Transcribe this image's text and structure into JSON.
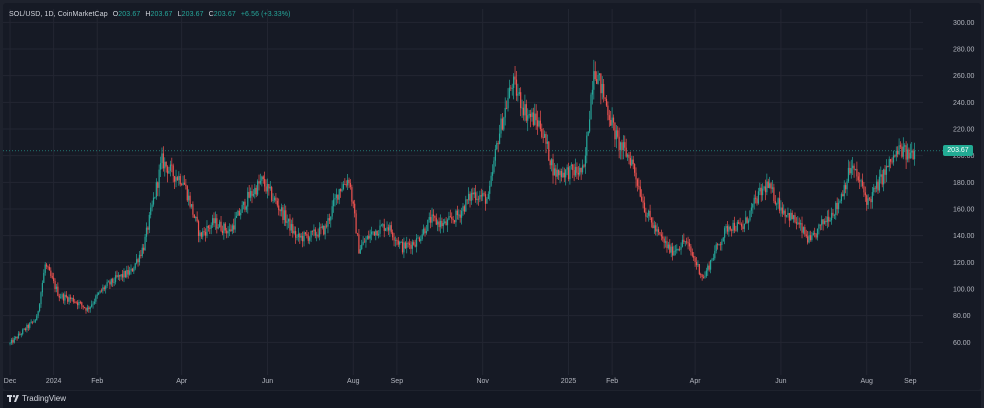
{
  "legend": {
    "symbol": "SOL/USD, 1D, CoinMarketCap",
    "open_label": "O",
    "open": "203.67",
    "high_label": "H",
    "high": "203.67",
    "low_label": "L",
    "low": "203.67",
    "close_label": "C",
    "close": "203.67",
    "change": "+6.56 (+3.33%)"
  },
  "last_price": "203.67",
  "brand": {
    "name": "TradingView"
  },
  "colors": {
    "up": "#26a69a",
    "down": "#ef5350",
    "grid": "#232632",
    "background": "#161a25"
  },
  "chart_data": {
    "type": "candlestick",
    "y_axis_side": "right",
    "ylim": [
      40,
      310
    ],
    "yticks": [
      60,
      80,
      100,
      120,
      140,
      160,
      180,
      200,
      220,
      240,
      260,
      280,
      300
    ],
    "ytick_labels": [
      "60.00",
      "80.00",
      "100.00",
      "120.00",
      "140.00",
      "160.00",
      "180.00",
      "200.00",
      "220.00",
      "240.00",
      "260.00",
      "280.00",
      "300.00"
    ],
    "xtick_labels": [
      "Dec",
      "2024",
      "Feb",
      "Apr",
      "Jun",
      "Aug",
      "Sep",
      "Nov",
      "2025",
      "Feb",
      "Apr",
      "Jun",
      "Aug",
      "Sep"
    ],
    "xtick_dates": [
      "2023-12-01",
      "2024-01-01",
      "2024-02-01",
      "2024-04-01",
      "2024-06-01",
      "2024-08-01",
      "2024-09-01",
      "2024-11-01",
      "2025-01-01",
      "2025-02-01",
      "2025-04-01",
      "2025-06-01",
      "2025-08-01",
      "2025-09-01"
    ],
    "last_value": 203.67,
    "close_trend": [
      [
        "2023-12-01",
        59
      ],
      [
        "2023-12-10",
        68
      ],
      [
        "2023-12-20",
        78
      ],
      [
        "2023-12-26",
        118
      ],
      [
        "2024-01-05",
        95
      ],
      [
        "2024-01-15",
        92
      ],
      [
        "2024-01-25",
        85
      ],
      [
        "2024-02-05",
        100
      ],
      [
        "2024-02-15",
        108
      ],
      [
        "2024-02-25",
        113
      ],
      [
        "2024-03-05",
        132
      ],
      [
        "2024-03-18",
        196
      ],
      [
        "2024-03-26",
        186
      ],
      [
        "2024-04-02",
        182
      ],
      [
        "2024-04-14",
        140
      ],
      [
        "2024-04-24",
        150
      ],
      [
        "2024-05-05",
        143
      ],
      [
        "2024-05-18",
        168
      ],
      [
        "2024-05-28",
        181
      ],
      [
        "2024-06-10",
        160
      ],
      [
        "2024-06-22",
        138
      ],
      [
        "2024-07-02",
        140
      ],
      [
        "2024-07-12",
        145
      ],
      [
        "2024-07-22",
        175
      ],
      [
        "2024-07-29",
        183
      ],
      [
        "2024-08-05",
        130
      ],
      [
        "2024-08-15",
        143
      ],
      [
        "2024-08-25",
        148
      ],
      [
        "2024-09-05",
        131
      ],
      [
        "2024-09-15",
        136
      ],
      [
        "2024-09-25",
        152
      ],
      [
        "2024-10-05",
        148
      ],
      [
        "2024-10-15",
        156
      ],
      [
        "2024-10-25",
        172
      ],
      [
        "2024-11-05",
        167
      ],
      [
        "2024-11-12",
        214
      ],
      [
        "2024-11-22",
        255
      ],
      [
        "2024-12-02",
        232
      ],
      [
        "2024-12-12",
        223
      ],
      [
        "2024-12-22",
        187
      ],
      [
        "2025-01-01",
        188
      ],
      [
        "2025-01-12",
        188
      ],
      [
        "2025-01-19",
        268
      ],
      [
        "2025-01-26",
        245
      ],
      [
        "2025-02-05",
        210
      ],
      [
        "2025-02-15",
        196
      ],
      [
        "2025-02-25",
        158
      ],
      [
        "2025-03-05",
        142
      ],
      [
        "2025-03-15",
        128
      ],
      [
        "2025-03-25",
        136
      ],
      [
        "2025-04-07",
        108
      ],
      [
        "2025-04-15",
        128
      ],
      [
        "2025-04-25",
        148
      ],
      [
        "2025-05-05",
        146
      ],
      [
        "2025-05-15",
        168
      ],
      [
        "2025-05-22",
        178
      ],
      [
        "2025-06-02",
        160
      ],
      [
        "2025-06-12",
        150
      ],
      [
        "2025-06-22",
        135
      ],
      [
        "2025-07-01",
        150
      ],
      [
        "2025-07-11",
        162
      ],
      [
        "2025-07-21",
        192
      ],
      [
        "2025-07-28",
        178
      ],
      [
        "2025-08-02",
        165
      ],
      [
        "2025-08-10",
        180
      ],
      [
        "2025-08-18",
        195
      ],
      [
        "2025-08-25",
        205
      ],
      [
        "2025-08-30",
        200
      ],
      [
        "2025-09-04",
        203.67
      ]
    ]
  }
}
